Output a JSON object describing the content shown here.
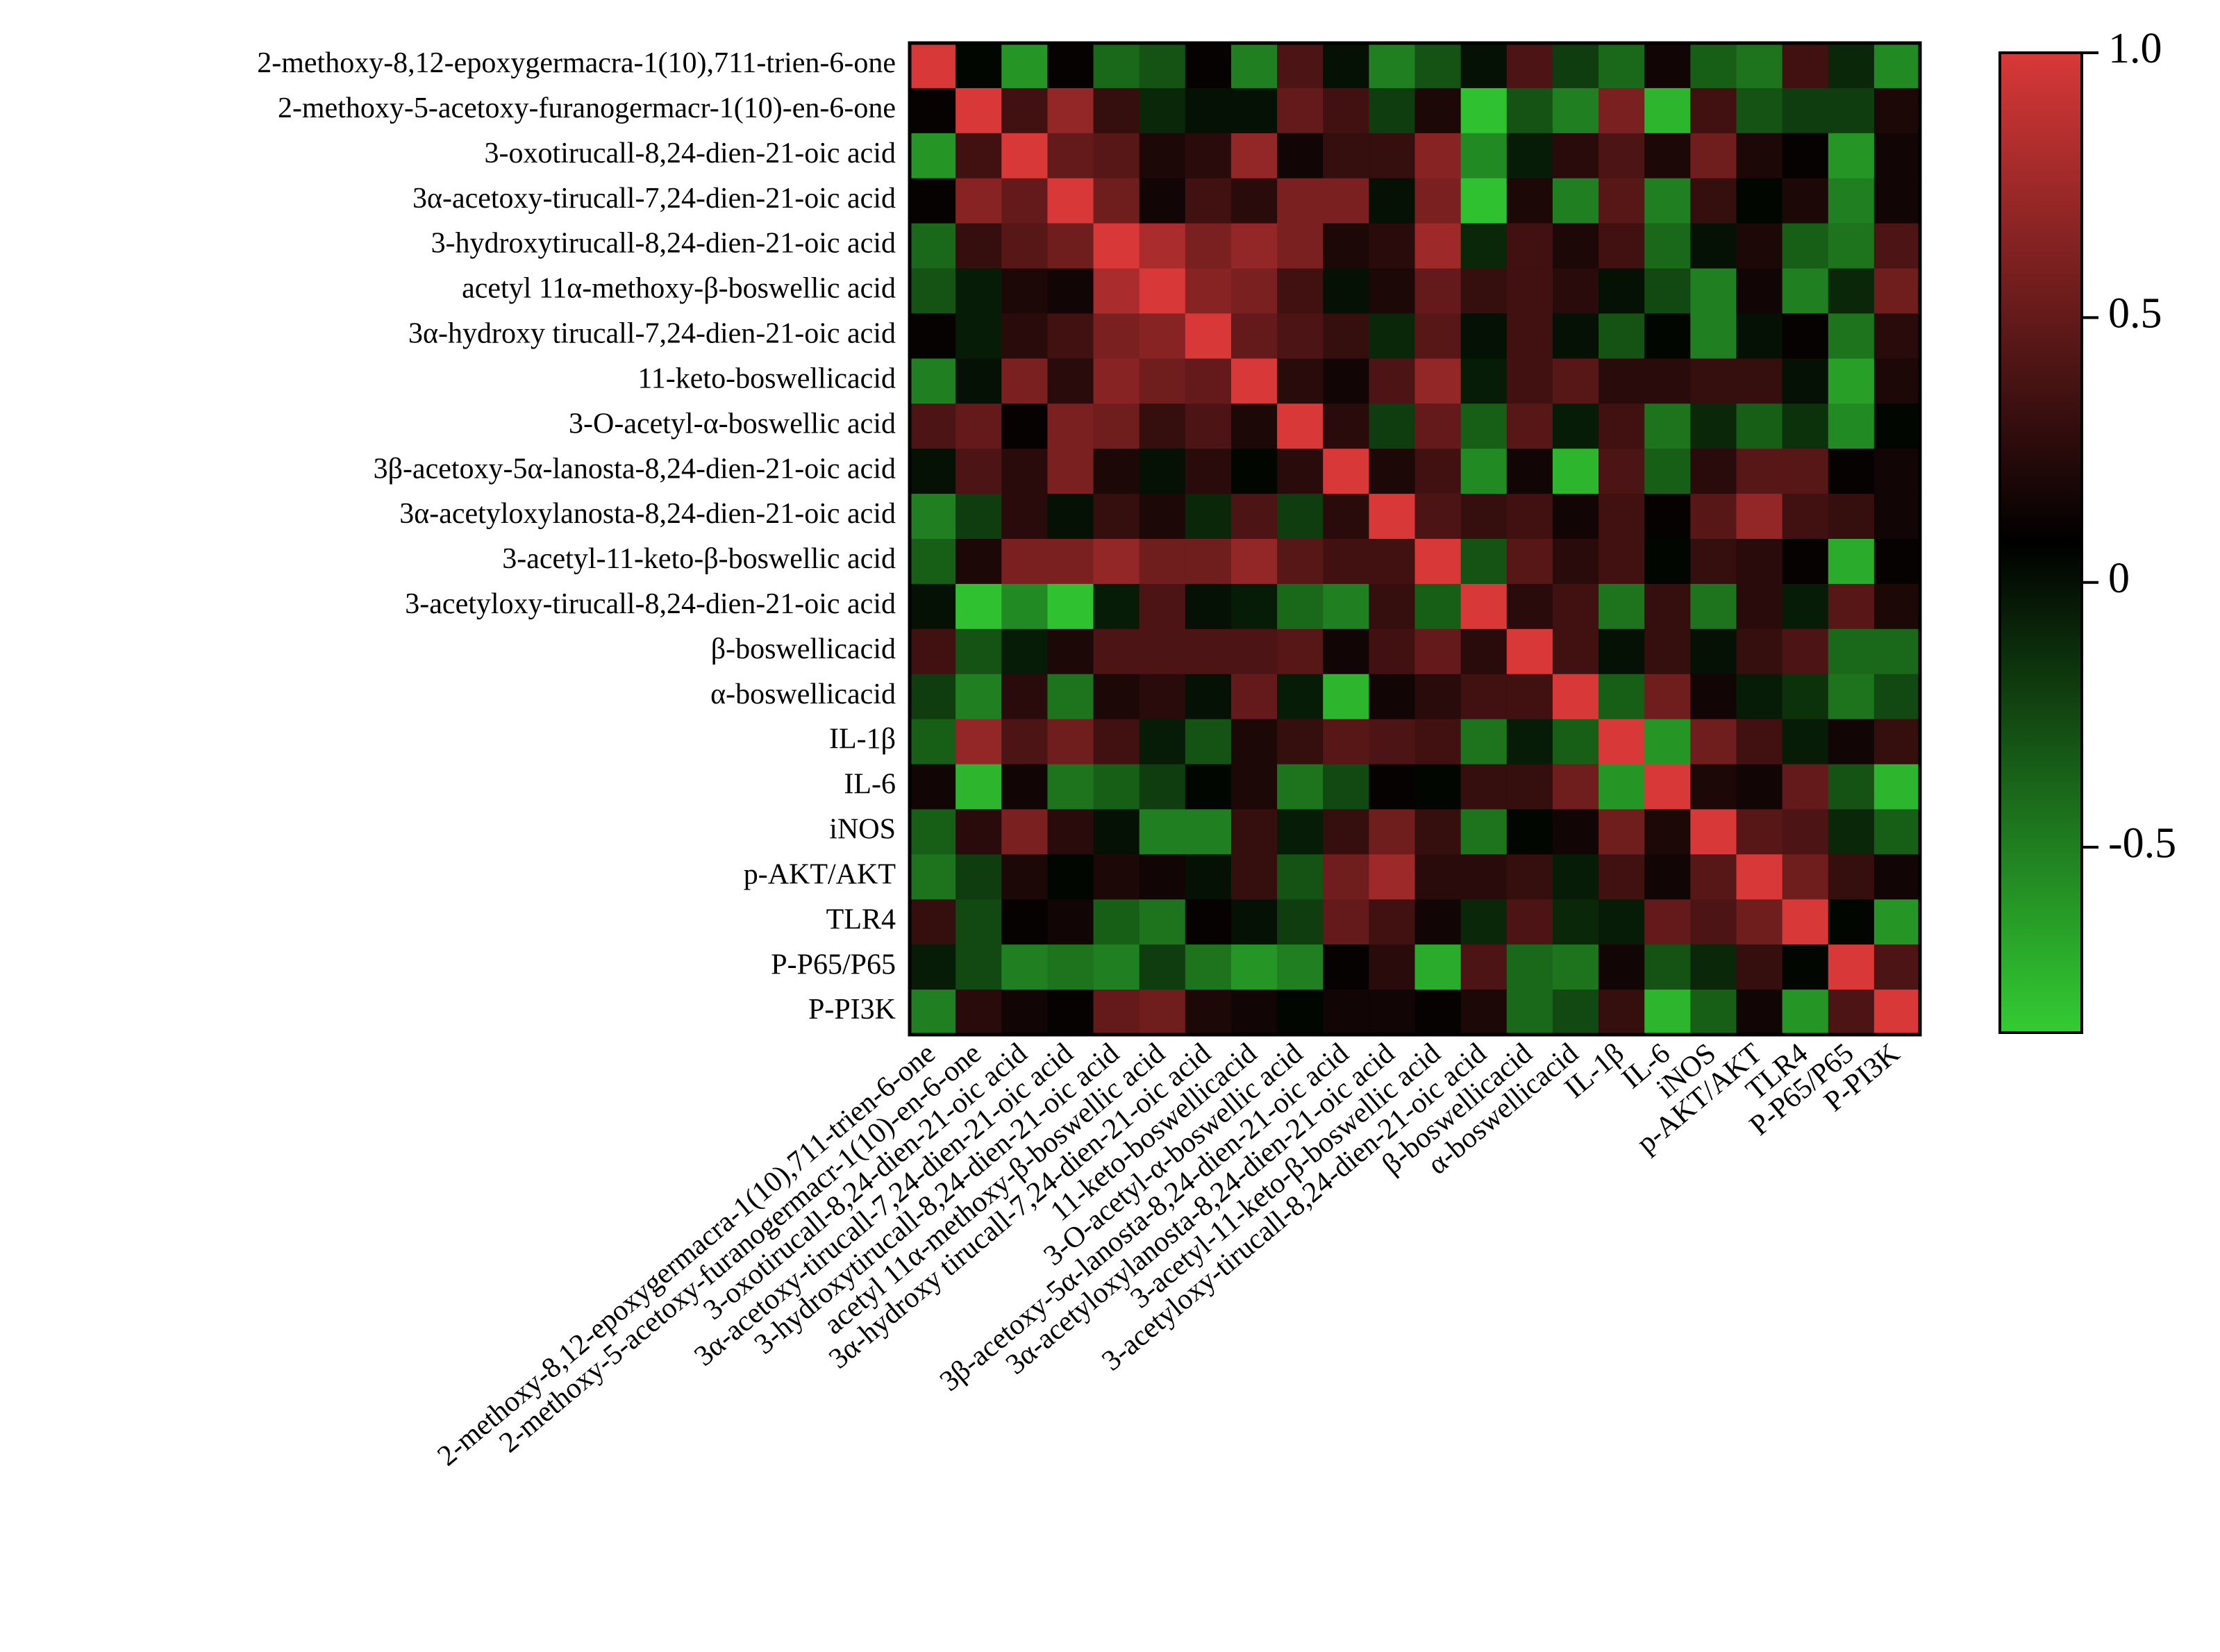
{
  "chart_data": {
    "type": "heatmap",
    "categories": [
      "2-methoxy-8,12-epoxygermacra-1(10),711-trien-6-one",
      "2-methoxy-5-acetoxy-furanogermacr-1(10)-en-6-one",
      "3-oxotirucall-8,24-dien-21-oic acid",
      "3α-acetoxy-tirucall-7,24-dien-21-oic acid",
      "3-hydroxytirucall-8,24-dien-21-oic acid",
      "acetyl 11α-methoxy-β-boswellic acid",
      "3α-hydroxy tirucall-7,24-dien-21-oic acid",
      "11-keto-boswellicacid",
      "3-O-acetyl-α-boswellic acid",
      "3β-acetoxy-5α-lanosta-8,24-dien-21-oic acid",
      "3α-acetyloxylanosta-8,24-dien-21-oic acid",
      "3-acetyl-11-keto-β-boswellic acid",
      "3-acetyloxy-tirucall-8,24-dien-21-oic acid",
      "β-boswellicacid",
      "α-boswellicacid",
      "IL-1β",
      "IL-6",
      "iNOS",
      "p-AKT/AKT",
      "TLR4",
      "P-P65/P65",
      "P-PI3K"
    ],
    "values": [
      [
        1,
        0.05,
        -0.6,
        0.1,
        -0.4,
        -0.3,
        0.1,
        -0.5,
        0.4,
        0.0,
        -0.5,
        -0.3,
        0.0,
        0.4,
        -0.2,
        -0.4,
        0.15,
        -0.35,
        -0.45,
        0.35,
        -0.1,
        -0.55
      ],
      [
        0.1,
        1,
        0.35,
        0.7,
        0.3,
        -0.1,
        0.0,
        0.0,
        0.5,
        0.35,
        -0.2,
        0.2,
        -0.8,
        -0.3,
        -0.5,
        0.6,
        -0.75,
        0.35,
        -0.3,
        -0.2,
        -0.2,
        0.2
      ],
      [
        -0.6,
        0.35,
        1,
        0.5,
        0.45,
        0.2,
        0.25,
        0.7,
        0.15,
        0.3,
        0.3,
        0.65,
        -0.55,
        -0.05,
        0.25,
        0.4,
        0.2,
        0.55,
        0.2,
        0.1,
        -0.6,
        0.15
      ],
      [
        0.1,
        0.65,
        0.5,
        1,
        0.55,
        0.15,
        0.35,
        0.25,
        0.6,
        0.6,
        0.0,
        0.6,
        -0.8,
        0.2,
        -0.5,
        0.45,
        -0.5,
        0.3,
        0.05,
        0.2,
        -0.5,
        0.15
      ],
      [
        -0.4,
        0.3,
        0.45,
        0.55,
        1,
        0.8,
        0.6,
        0.7,
        0.6,
        0.2,
        0.25,
        0.75,
        -0.1,
        0.35,
        0.2,
        0.35,
        -0.4,
        0.0,
        0.2,
        -0.35,
        -0.45,
        0.4
      ],
      [
        -0.3,
        -0.05,
        0.2,
        0.15,
        0.8,
        1,
        0.65,
        0.6,
        0.35,
        0.0,
        0.2,
        0.5,
        0.3,
        0.35,
        0.25,
        0.0,
        -0.25,
        -0.5,
        0.15,
        -0.5,
        -0.1,
        0.55
      ],
      [
        0.1,
        -0.05,
        0.25,
        0.35,
        0.6,
        0.65,
        1,
        0.5,
        0.4,
        0.3,
        -0.1,
        0.45,
        0.0,
        0.35,
        0.0,
        -0.3,
        0.05,
        -0.5,
        0.0,
        0.1,
        -0.45,
        0.25
      ],
      [
        -0.5,
        0.0,
        0.6,
        0.25,
        0.65,
        0.55,
        0.5,
        1,
        0.25,
        0.15,
        0.4,
        0.7,
        -0.05,
        0.35,
        0.45,
        0.25,
        0.25,
        0.3,
        0.3,
        0.0,
        -0.65,
        0.2
      ],
      [
        0.4,
        0.5,
        0.1,
        0.6,
        0.55,
        0.3,
        0.4,
        0.2,
        1,
        0.25,
        -0.2,
        0.5,
        -0.35,
        0.45,
        -0.05,
        0.35,
        -0.45,
        -0.1,
        -0.35,
        -0.15,
        -0.55,
        0.05
      ],
      [
        0.0,
        0.4,
        0.25,
        0.6,
        0.2,
        0.0,
        0.25,
        0.05,
        0.25,
        1,
        0.2,
        0.35,
        -0.55,
        0.15,
        -0.75,
        0.4,
        -0.35,
        0.25,
        0.45,
        0.45,
        0.1,
        0.15
      ],
      [
        -0.5,
        -0.2,
        0.25,
        0.0,
        0.3,
        0.2,
        -0.1,
        0.4,
        -0.2,
        0.25,
        1,
        0.4,
        0.3,
        0.35,
        0.15,
        0.35,
        0.1,
        0.45,
        0.7,
        0.35,
        0.3,
        0.15
      ],
      [
        -0.35,
        0.2,
        0.6,
        0.6,
        0.7,
        0.55,
        0.55,
        0.7,
        0.45,
        0.35,
        0.35,
        1,
        -0.3,
        0.45,
        0.25,
        0.35,
        0.05,
        0.3,
        0.25,
        0.1,
        -0.7,
        0.1
      ],
      [
        0.0,
        -0.8,
        -0.55,
        -0.8,
        -0.05,
        0.4,
        0.0,
        -0.05,
        -0.4,
        -0.5,
        0.3,
        -0.35,
        1,
        0.25,
        0.35,
        -0.45,
        0.3,
        -0.45,
        0.25,
        -0.05,
        0.45,
        0.2
      ],
      [
        0.35,
        -0.3,
        -0.05,
        0.2,
        0.4,
        0.4,
        0.4,
        0.4,
        0.45,
        0.15,
        0.35,
        0.5,
        0.25,
        1,
        0.35,
        0.0,
        0.3,
        0.0,
        0.3,
        0.4,
        -0.4,
        -0.4
      ],
      [
        -0.2,
        -0.5,
        0.25,
        -0.45,
        0.2,
        0.25,
        0.0,
        0.5,
        -0.05,
        -0.75,
        0.15,
        0.25,
        0.35,
        0.35,
        1,
        -0.35,
        0.55,
        0.15,
        -0.05,
        -0.15,
        -0.45,
        -0.25
      ],
      [
        -0.35,
        0.7,
        0.4,
        0.55,
        0.35,
        -0.05,
        -0.3,
        0.2,
        0.3,
        0.45,
        0.4,
        0.35,
        -0.45,
        -0.05,
        -0.35,
        1,
        -0.6,
        0.55,
        0.35,
        -0.05,
        0.15,
        0.3
      ],
      [
        0.15,
        -0.75,
        0.15,
        -0.45,
        -0.35,
        -0.2,
        0.05,
        0.2,
        -0.45,
        -0.25,
        0.1,
        0.05,
        0.3,
        0.3,
        0.55,
        -0.6,
        1,
        0.2,
        0.15,
        0.5,
        -0.3,
        -0.75
      ],
      [
        -0.35,
        0.25,
        0.6,
        0.25,
        0.0,
        -0.5,
        -0.5,
        0.3,
        -0.05,
        0.3,
        0.55,
        0.3,
        -0.45,
        0.05,
        0.15,
        0.55,
        0.2,
        1,
        0.45,
        0.4,
        -0.1,
        -0.35
      ],
      [
        -0.45,
        -0.2,
        0.2,
        0.05,
        0.2,
        0.15,
        0.0,
        0.3,
        -0.3,
        0.55,
        0.75,
        0.25,
        0.25,
        0.3,
        -0.05,
        0.35,
        0.15,
        0.45,
        1,
        0.55,
        0.3,
        0.15
      ],
      [
        0.3,
        -0.25,
        0.1,
        0.15,
        -0.35,
        -0.45,
        0.1,
        0.0,
        -0.2,
        0.5,
        0.35,
        0.15,
        -0.1,
        0.4,
        -0.1,
        -0.05,
        0.5,
        0.4,
        0.55,
        1,
        0.05,
        -0.6
      ],
      [
        -0.05,
        -0.25,
        -0.5,
        -0.45,
        -0.5,
        -0.2,
        -0.45,
        -0.6,
        -0.5,
        0.1,
        0.25,
        -0.7,
        0.4,
        -0.4,
        -0.45,
        0.15,
        -0.3,
        -0.1,
        0.3,
        0.05,
        1,
        0.4
      ],
      [
        -0.5,
        0.25,
        0.15,
        0.1,
        0.5,
        0.55,
        0.2,
        0.15,
        0.05,
        0.15,
        0.15,
        0.1,
        0.2,
        -0.4,
        -0.25,
        0.3,
        -0.75,
        -0.35,
        0.15,
        -0.6,
        0.4,
        1
      ]
    ],
    "zlim": [
      -0.85,
      1
    ],
    "zticks": [
      {
        "value": 1,
        "label": "1.0"
      },
      0.5,
      0,
      -0.5
    ],
    "colors": [
      "#33cc33",
      "#000000",
      "#d93838"
    ]
  }
}
